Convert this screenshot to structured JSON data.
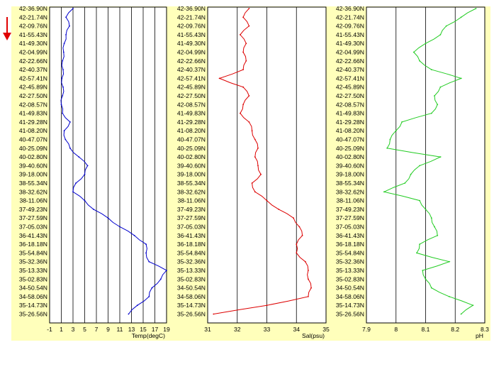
{
  "latitude_labels": [
    "42-36.90N",
    "42-21.74N",
    "42-09.76N",
    "41-55.43N",
    "41-49.30N",
    "42-04.99N",
    "42-22.66N",
    "42-40.37N",
    "42-57.41N",
    "42-45.89N",
    "42-27.50N",
    "42-08.57N",
    "41-49.83N",
    "41-29.28N",
    "41-08.20N",
    "40-47.07N",
    "40-25.09N",
    "40-02.80N",
    "39-40.60N",
    "39-18.00N",
    "38-55.34N",
    "38-32.62N",
    "38-11.06N",
    "37-49.23N",
    "37-27.59N",
    "37-05.03N",
    "36-41.43N",
    "36-18.18N",
    "35-54.84N",
    "35-32.36N",
    "35-13.33N",
    "35-02.83N",
    "34-50.54N",
    "34-58.06N",
    "35-14.73N",
    "35-26.56N"
  ],
  "indicator": {
    "icon": "red-down-arrow-icon",
    "color": "#e00000"
  },
  "chart_data": [
    {
      "type": "line",
      "xlabel": "Temp(degC)",
      "color": "#0000cc",
      "xlim": [
        -1,
        19
      ],
      "ticks": [
        -1,
        1,
        3,
        5,
        7,
        9,
        11,
        13,
        15,
        17,
        19
      ],
      "y": [
        0,
        1,
        2,
        3,
        4,
        5,
        6,
        7,
        8,
        9,
        10,
        11,
        12,
        13,
        14,
        15,
        16,
        17,
        18,
        19,
        20,
        21,
        22,
        23,
        24,
        25,
        26,
        27,
        28,
        29,
        30,
        31,
        32,
        33,
        34,
        35
      ],
      "x": [
        3.0,
        1.8,
        2.4,
        1.8,
        1.5,
        1.4,
        1.2,
        1.3,
        1.1,
        1.3,
        1.2,
        1.0,
        1.2,
        2.5,
        1.5,
        1.7,
        2.5,
        4.0,
        5.5,
        5.0,
        3.5,
        3.0,
        5.0,
        6.5,
        9.0,
        11.0,
        13.5,
        15.5,
        15.5,
        16.0,
        19.0,
        18.0,
        16.5,
        16.0,
        14.0,
        12.5
      ]
    },
    {
      "type": "line",
      "xlabel": "Sal(psu)",
      "color": "#dd0000",
      "xlim": [
        31,
        35
      ],
      "ticks": [
        31,
        32,
        33,
        34,
        35
      ],
      "y": [
        0,
        1,
        2,
        3,
        4,
        5,
        6,
        7,
        8,
        9,
        10,
        11,
        12,
        13,
        14,
        15,
        16,
        17,
        18,
        19,
        20,
        21,
        22,
        23,
        24,
        25,
        26,
        27,
        28,
        29,
        30,
        31,
        32,
        33,
        34,
        35
      ],
      "x": [
        32.4,
        32.2,
        32.4,
        32.1,
        32.3,
        32.2,
        32.3,
        32.2,
        31.4,
        32.2,
        32.4,
        32.2,
        32.1,
        32.4,
        32.5,
        32.6,
        32.7,
        32.6,
        32.7,
        32.8,
        32.5,
        32.6,
        33.0,
        33.4,
        33.9,
        34.1,
        34.2,
        34.0,
        34.0,
        34.3,
        34.4,
        34.4,
        34.5,
        34.4,
        33.0,
        31.2
      ]
    },
    {
      "type": "line",
      "xlabel": "pH",
      "color": "#22cc22",
      "xlim": [
        7.9,
        8.3
      ],
      "ticks": [
        7.9,
        8.0,
        8.1,
        8.2,
        8.3
      ],
      "y": [
        0,
        1,
        2,
        3,
        4,
        5,
        6,
        7,
        8,
        9,
        10,
        11,
        12,
        13,
        14,
        15,
        16,
        17,
        18,
        19,
        20,
        21,
        22,
        23,
        24,
        25,
        26,
        27,
        28,
        29,
        30,
        31,
        32,
        33,
        34,
        35
      ],
      "x": [
        8.27,
        8.22,
        8.17,
        8.15,
        8.1,
        8.06,
        8.08,
        8.12,
        8.22,
        8.15,
        8.13,
        8.14,
        8.12,
        8.02,
        8.0,
        7.98,
        7.97,
        8.15,
        8.08,
        8.05,
        8.03,
        7.96,
        8.08,
        8.1,
        8.12,
        8.13,
        8.14,
        8.08,
        8.07,
        8.18,
        8.09,
        8.1,
        8.12,
        8.18,
        8.26,
        8.22
      ]
    }
  ]
}
